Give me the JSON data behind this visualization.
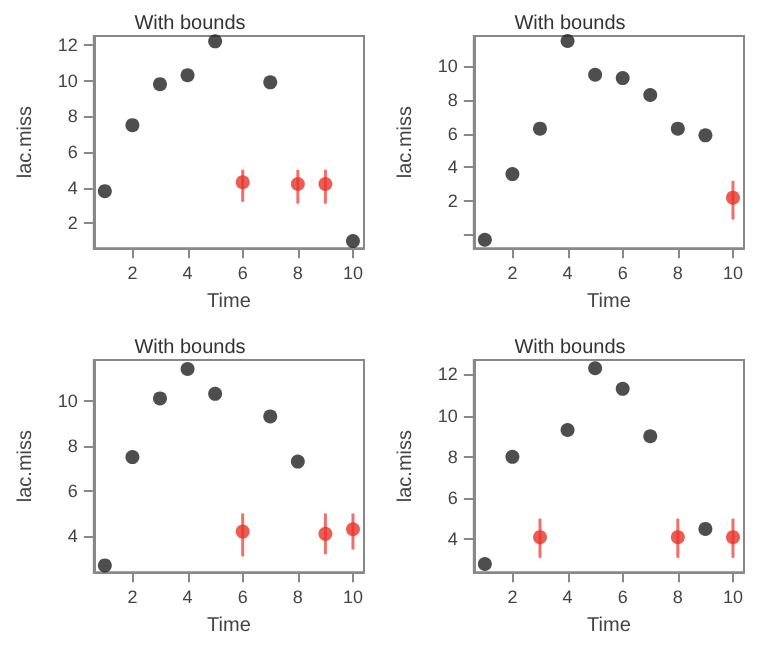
{
  "chart_data": [
    {
      "type": "scatter",
      "title": "With bounds",
      "xlabel": "Time",
      "ylabel": "lac.miss",
      "x": [
        1,
        2,
        3,
        4,
        5,
        6,
        7,
        8,
        9,
        10
      ],
      "xlim": [
        0.6,
        10.4
      ],
      "xticks": [
        2,
        4,
        6,
        8,
        10
      ],
      "ylim": [
        0.6,
        12.5
      ],
      "yticks": [
        2,
        4,
        6,
        8,
        10,
        12
      ],
      "grid": false,
      "marker": "circle",
      "series": [
        {
          "color": "#222222",
          "values": [
            3.8,
            7.5,
            9.8,
            10.3,
            12.2,
            null,
            9.9,
            null,
            null,
            1.0
          ]
        },
        {
          "color": "#e8322a",
          "values": [
            null,
            null,
            null,
            null,
            null,
            4.3,
            null,
            4.2,
            4.2,
            null
          ],
          "errors": [
            null,
            null,
            null,
            null,
            null,
            [
              3.2,
              5.0
            ],
            null,
            [
              3.1,
              5.0
            ],
            [
              3.1,
              5.0
            ],
            null
          ]
        }
      ]
    },
    {
      "type": "scatter",
      "title": "With bounds",
      "xlabel": "Time",
      "ylabel": "lac.miss",
      "x": [
        1,
        2,
        3,
        4,
        5,
        6,
        7,
        8,
        9,
        10
      ],
      "xlim": [
        0.6,
        10.4
      ],
      "xticks": [
        2,
        4,
        6,
        8,
        10
      ],
      "ylim": [
        -0.8,
        11.8
      ],
      "yticks": [
        {
          "value": 0,
          "label": null
        },
        2,
        4,
        6,
        8,
        10
      ],
      "grid": false,
      "marker": "circle",
      "series": [
        {
          "color": "#222222",
          "values": [
            -0.3,
            3.6,
            6.3,
            11.5,
            9.5,
            9.3,
            8.3,
            6.3,
            5.9,
            null
          ]
        },
        {
          "color": "#e8322a",
          "values": [
            null,
            null,
            null,
            null,
            null,
            null,
            null,
            null,
            null,
            2.2
          ],
          "errors": [
            null,
            null,
            null,
            null,
            null,
            null,
            null,
            null,
            null,
            [
              0.9,
              3.2
            ]
          ]
        }
      ]
    },
    {
      "type": "scatter",
      "title": "With bounds",
      "xlabel": "Time",
      "ylabel": "lac.miss",
      "x": [
        1,
        2,
        3,
        4,
        5,
        6,
        7,
        8,
        9,
        10
      ],
      "xlim": [
        0.6,
        10.4
      ],
      "xticks": [
        2,
        4,
        6,
        8,
        10
      ],
      "ylim": [
        2.4,
        11.8
      ],
      "yticks": [
        4,
        6,
        8,
        10
      ],
      "grid": false,
      "marker": "circle",
      "series": [
        {
          "color": "#222222",
          "values": [
            2.7,
            7.5,
            10.1,
            11.4,
            10.3,
            null,
            9.3,
            7.3,
            null,
            null
          ]
        },
        {
          "color": "#e8322a",
          "values": [
            null,
            null,
            null,
            null,
            null,
            4.2,
            null,
            null,
            4.1,
            4.3
          ],
          "errors": [
            null,
            null,
            null,
            null,
            null,
            [
              3.1,
              5.0
            ],
            null,
            null,
            [
              3.2,
              5.0
            ],
            [
              3.4,
              5.0
            ]
          ]
        }
      ]
    },
    {
      "type": "scatter",
      "title": "With bounds",
      "xlabel": "Time",
      "ylabel": "lac.miss",
      "x": [
        1,
        2,
        3,
        4,
        5,
        6,
        7,
        8,
        9,
        10
      ],
      "xlim": [
        0.6,
        10.4
      ],
      "xticks": [
        2,
        4,
        6,
        8,
        10
      ],
      "ylim": [
        2.4,
        12.7
      ],
      "yticks": [
        4,
        6,
        8,
        10,
        12
      ],
      "grid": false,
      "marker": "circle",
      "series": [
        {
          "color": "#222222",
          "values": [
            2.8,
            8.0,
            null,
            9.3,
            12.3,
            11.3,
            9.0,
            null,
            4.5,
            null
          ]
        },
        {
          "color": "#e8322a",
          "values": [
            null,
            null,
            4.1,
            null,
            null,
            null,
            null,
            4.1,
            null,
            4.1
          ],
          "errors": [
            null,
            null,
            [
              3.1,
              5.0
            ],
            null,
            null,
            null,
            null,
            [
              3.1,
              5.0
            ],
            null,
            [
              3.1,
              5.0
            ]
          ]
        }
      ]
    }
  ]
}
